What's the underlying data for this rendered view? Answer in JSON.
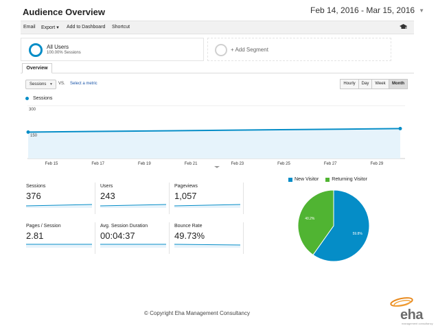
{
  "header": {
    "title": "Audience Overview",
    "date_range": "Feb 14, 2016 - Mar 15, 2016"
  },
  "toolbar": {
    "items": [
      "Email",
      "Export",
      "Add to Dashboard",
      "Shortcut"
    ],
    "export_caret": "▾",
    "customize_icon": "graduation-cap-icon"
  },
  "segments": {
    "all_users": {
      "title": "All Users",
      "subtitle": "100.00% Sessions"
    },
    "add_segment": "+ Add Segment"
  },
  "tabs": [
    {
      "label": "Overview",
      "active": true
    }
  ],
  "metric_controls": {
    "metric": "Sessions",
    "vs": "VS.",
    "select_metric": "Select a metric",
    "periods": [
      {
        "label": "Hourly",
        "active": false
      },
      {
        "label": "Day",
        "active": false
      },
      {
        "label": "Week",
        "active": false
      },
      {
        "label": "Month",
        "active": true
      }
    ]
  },
  "chart_data": {
    "type": "area",
    "series": [
      {
        "name": "Sessions",
        "x": [
          "Feb 14",
          "Mar 15"
        ],
        "values": [
          150,
          170
        ]
      }
    ],
    "yticks": [
      "300",
      "150"
    ],
    "ylim": [
      0,
      300
    ],
    "xticks": [
      "Feb 15",
      "Feb 17",
      "Feb 19",
      "Feb 21",
      "Feb 23",
      "Feb 25",
      "Feb 27",
      "Feb 29"
    ],
    "colors": {
      "line": "#058dc7",
      "fill": "#e6f3fb"
    }
  },
  "stats": [
    {
      "label": "Sessions",
      "value": "376"
    },
    {
      "label": "Users",
      "value": "243"
    },
    {
      "label": "Pageviews",
      "value": "1,057"
    },
    {
      "label": "Pages / Session",
      "value": "2.81"
    },
    {
      "label": "Avg. Session Duration",
      "value": "00:04:37"
    },
    {
      "label": "Bounce Rate",
      "value": "49.73%"
    }
  ],
  "pie": {
    "legend": [
      {
        "name": "New Visitor",
        "color": "#058dc7"
      },
      {
        "name": "Returning Visitor",
        "color": "#50b432"
      }
    ],
    "slices": [
      {
        "name": "New Visitor",
        "value": 59.8,
        "label": "59.8%"
      },
      {
        "name": "Returning Visitor",
        "value": 40.2,
        "label": "40.2%"
      }
    ]
  },
  "footer": {
    "copyright": "© Copyright Eha Management Consultancy",
    "logo_text": "eha",
    "logo_sub": "management consultancy"
  }
}
